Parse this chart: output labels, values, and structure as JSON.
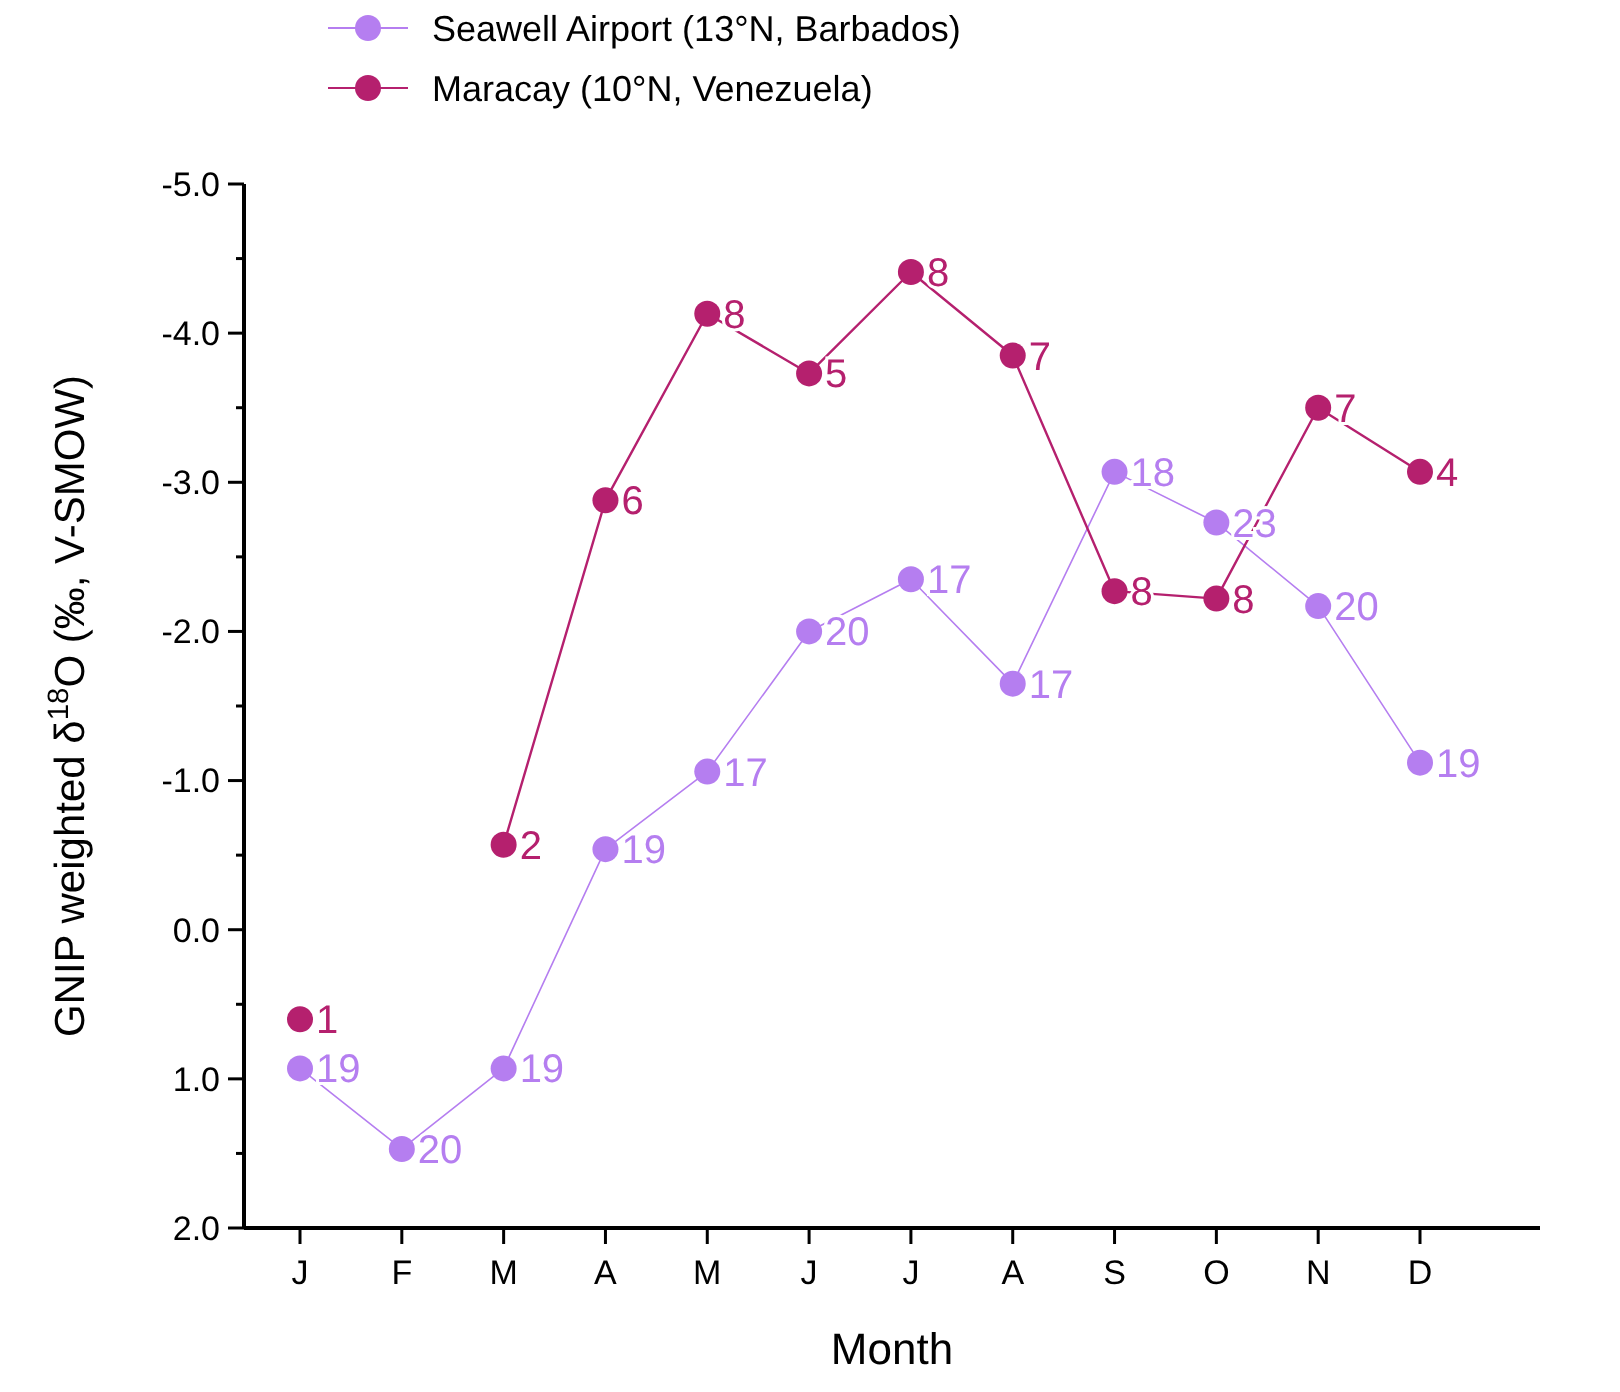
{
  "chart_data": {
    "type": "line",
    "xlabel": "Month",
    "ylabel": "GNIP weighted δ$^{18}$O (‰,  V-SMOW)",
    "categories": [
      "J",
      "F",
      "M",
      "A",
      "M",
      "J",
      "J",
      "A",
      "S",
      "O",
      "N",
      "D"
    ],
    "series": [
      {
        "name": "Seawell Airport (13°N, Barbados)",
        "color": "#b57ef0",
        "values": [
          0.93,
          1.47,
          0.93,
          -0.54,
          -1.06,
          -2.0,
          -2.35,
          -1.65,
          -3.07,
          -2.73,
          -2.17,
          -1.12
        ]
      },
      {
        "name": "Maracay (10°N, Venezuela)",
        "color": "#b5206e",
        "values": [
          0.6,
          null,
          -0.57,
          -2.88,
          -4.13,
          -3.73,
          -4.41,
          -3.85,
          -2.27,
          -2.22,
          -3.5,
          -3.07
        ]
      }
    ],
    "ylim": [
      2.0,
      -5.0
    ],
    "yticks": [
      {
        "value": 2,
        "label": "2.0"
      },
      {
        "value": 1.5,
        "label": null
      },
      {
        "value": 1,
        "label": "1.0"
      },
      {
        "value": 0.5,
        "label": null
      },
      {
        "value": 0,
        "label": "0.0"
      },
      {
        "value": -0.5,
        "label": null
      },
      {
        "value": -1,
        "label": "-1.0"
      },
      {
        "value": -1.5,
        "label": null
      },
      {
        "value": -2,
        "label": "-2.0"
      },
      {
        "value": -2.5,
        "label": null
      },
      {
        "value": -3,
        "label": "-3.0"
      },
      {
        "value": -3.5,
        "label": null
      },
      {
        "value": -4,
        "label": "-4.0"
      },
      {
        "value": -4.5,
        "label": null
      },
      {
        "value": -5,
        "label": "-5.0"
      }
    ],
    "marker": "circle",
    "line_style": "solid",
    "grid": false,
    "legend": "top left",
    "annotations": [
      "19",
      "20",
      "19",
      "19",
      "17",
      "20",
      "17",
      "17",
      "18",
      "23",
      "20",
      "19",
      "1",
      "2",
      "6",
      "8",
      "5",
      "8",
      "7",
      "8",
      "8",
      "7",
      "4"
    ]
  }
}
